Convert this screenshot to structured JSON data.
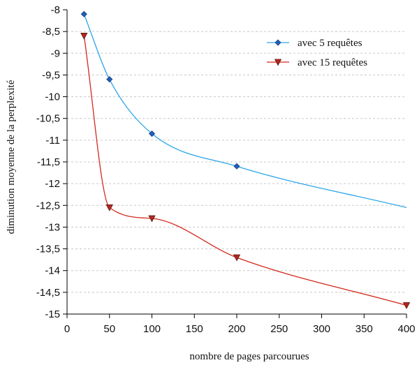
{
  "chart_data": {
    "type": "line",
    "title": "",
    "xlabel": "nombre de pages parcourues",
    "ylabel": "diminution moyenne de la perplexité",
    "xlim": [
      0,
      400
    ],
    "ylim": [
      -15,
      -8
    ],
    "x_ticks": [
      0,
      50,
      100,
      150,
      200,
      250,
      300,
      350,
      400
    ],
    "x_tick_labels": [
      "0",
      "50",
      "100",
      "150",
      "200",
      "250",
      "300",
      "350",
      "400"
    ],
    "y_ticks": [
      -8,
      -8.5,
      -9,
      -9.5,
      -10,
      -10.5,
      -11,
      -11.5,
      -12,
      -12.5,
      -13,
      -13.5,
      -14,
      -14.5,
      -15
    ],
    "y_tick_labels": [
      "-8",
      "-8,5",
      "-9",
      "-9,5",
      "-10",
      "-10,5",
      "-11",
      "-11,5",
      "-12",
      "-12,5",
      "-13",
      "-13,5",
      "-14",
      "-14,5",
      "-15"
    ],
    "grid": "horizontal dashed",
    "legend_position": "top-right",
    "series": [
      {
        "name": "avec 5 requêtes",
        "color": "#2aa6e8",
        "marker": "diamond",
        "marker_color": "#1f5fbf",
        "x": [
          20,
          50,
          100,
          200,
          400
        ],
        "y": [
          -8.1,
          -9.6,
          -10.85,
          -11.6,
          -12.55
        ],
        "marked": [
          true,
          true,
          true,
          true,
          false
        ]
      },
      {
        "name": "avec 15 requêtes",
        "color": "#d22a1c",
        "marker": "triangle-down",
        "marker_color": "#b3261e",
        "x": [
          20,
          50,
          100,
          200,
          400
        ],
        "y": [
          -8.6,
          -12.55,
          -12.8,
          -13.7,
          -14.8
        ],
        "marked": [
          true,
          true,
          true,
          true,
          true
        ]
      }
    ]
  }
}
